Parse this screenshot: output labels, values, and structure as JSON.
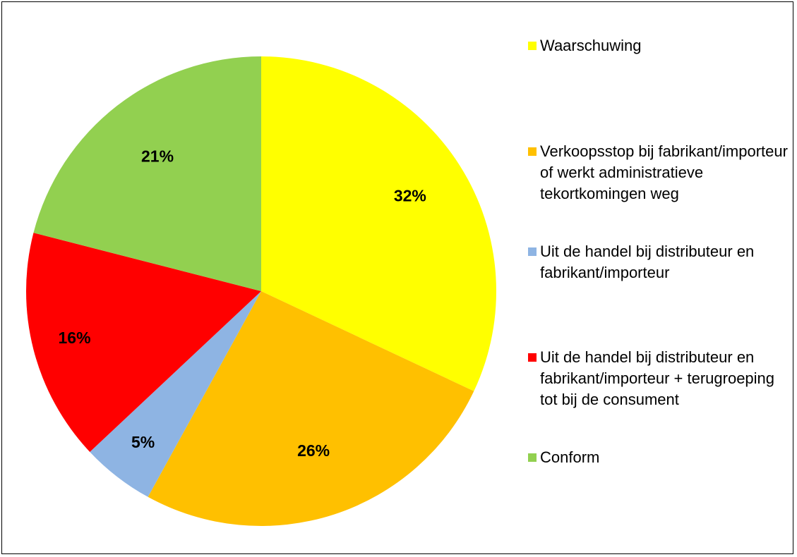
{
  "chart_data": {
    "type": "pie",
    "title": "",
    "slices": [
      {
        "label": "Waarschuwing",
        "value": 32,
        "value_label": "32%",
        "color": "#FFFF00"
      },
      {
        "label": "Verkoopsstop bij fabrikant/importeur of werkt administratieve tekortkomingen weg",
        "value": 26,
        "value_label": "26%",
        "color": "#FFC000"
      },
      {
        "label": "Uit de handel bij distributeur en fabrikant/importeur",
        "value": 5,
        "value_label": "5%",
        "color": "#8EB4E3"
      },
      {
        "label": "Uit de handel bij distributeur en fabrikant/importeur + terugroeping tot bij de consument",
        "value": 16,
        "value_label": "16%",
        "color": "#FF0000"
      },
      {
        "label": "Conform",
        "value": 21,
        "value_label": "21%",
        "color": "#92D050"
      }
    ],
    "legend_position": "right"
  }
}
